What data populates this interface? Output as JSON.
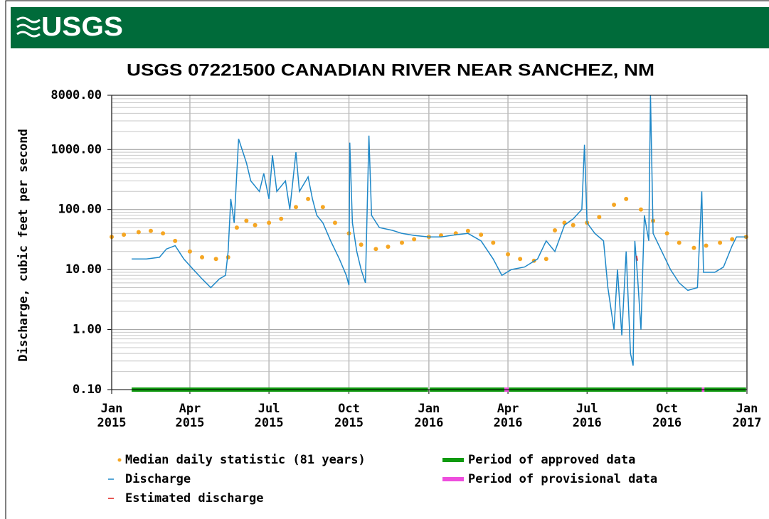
{
  "header": {
    "logo": "USGS"
  },
  "chart_data": {
    "type": "line",
    "title": "USGS 07221500 CANADIAN RIVER NEAR SANCHEZ, NM",
    "y_label": "Discharge, cubic feet per second",
    "log_y": true,
    "grid": true,
    "xlim": [
      "2015-01-01",
      "2017-01-01"
    ],
    "xticks": [
      {
        "value": "2015-01-01",
        "label": "Jan\n2015"
      },
      {
        "value": "2015-04-01",
        "label": "Apr\n2015"
      },
      {
        "value": "2015-07-01",
        "label": "Jul\n2015"
      },
      {
        "value": "2015-10-01",
        "label": "Oct\n2015"
      },
      {
        "value": "2016-01-01",
        "label": "Jan\n2016"
      },
      {
        "value": "2016-04-01",
        "label": "Apr\n2016"
      },
      {
        "value": "2016-07-01",
        "label": "Jul\n2016"
      },
      {
        "value": "2016-10-01",
        "label": "Oct\n2016"
      },
      {
        "value": "2017-01-01",
        "label": "Jan\n2017"
      }
    ],
    "ylim": [
      0.1,
      8000
    ],
    "yticks": [
      {
        "value": 0.1,
        "label": "0.10"
      },
      {
        "value": 1,
        "label": "1.00"
      },
      {
        "value": 10,
        "label": "10.00"
      },
      {
        "value": 100,
        "label": "100.00"
      },
      {
        "value": 1000,
        "label": "1000.00"
      },
      {
        "value": 8000,
        "label": "8000.00"
      }
    ],
    "series": [
      {
        "name": "Median daily statistic (81 years)",
        "color": "#f5a623",
        "marker": "dot",
        "x": [
          "2015-01-01",
          "2015-01-15",
          "2015-02-01",
          "2015-02-15",
          "2015-03-01",
          "2015-03-15",
          "2015-04-01",
          "2015-04-15",
          "2015-05-01",
          "2015-05-15",
          "2015-05-25",
          "2015-06-05",
          "2015-06-15",
          "2015-07-01",
          "2015-07-15",
          "2015-08-01",
          "2015-08-15",
          "2015-09-01",
          "2015-09-15",
          "2015-10-01",
          "2015-10-15",
          "2015-11-01",
          "2015-11-15",
          "2015-12-01",
          "2015-12-15",
          "2016-01-01",
          "2016-01-15",
          "2016-02-01",
          "2016-02-15",
          "2016-03-01",
          "2016-03-15",
          "2016-04-01",
          "2016-04-15",
          "2016-05-01",
          "2016-05-15",
          "2016-05-25",
          "2016-06-05",
          "2016-06-15",
          "2016-07-01",
          "2016-07-15",
          "2016-08-01",
          "2016-08-15",
          "2016-09-01",
          "2016-09-15",
          "2016-10-01",
          "2016-10-15",
          "2016-11-01",
          "2016-11-15",
          "2016-12-01",
          "2016-12-15",
          "2016-12-31"
        ],
        "values": [
          35,
          38,
          42,
          44,
          40,
          30,
          20,
          16,
          15,
          16,
          50,
          65,
          55,
          60,
          70,
          110,
          150,
          110,
          60,
          40,
          26,
          22,
          24,
          28,
          32,
          35,
          37,
          40,
          44,
          38,
          28,
          18,
          15,
          14,
          15,
          45,
          60,
          55,
          60,
          75,
          120,
          150,
          100,
          65,
          40,
          28,
          23,
          25,
          28,
          32,
          35
        ]
      },
      {
        "name": "Discharge",
        "color": "#1f88c8",
        "marker": "line",
        "x": [
          "2015-01-24",
          "2015-02-10",
          "2015-02-25",
          "2015-03-05",
          "2015-03-15",
          "2015-03-25",
          "2015-04-05",
          "2015-04-15",
          "2015-04-25",
          "2015-05-05",
          "2015-05-12",
          "2015-05-15",
          "2015-05-18",
          "2015-05-22",
          "2015-05-27",
          "2015-06-05",
          "2015-06-10",
          "2015-06-20",
          "2015-06-25",
          "2015-07-01",
          "2015-07-05",
          "2015-07-10",
          "2015-07-20",
          "2015-07-25",
          "2015-08-01",
          "2015-08-05",
          "2015-08-15",
          "2015-08-20",
          "2015-08-25",
          "2015-09-01",
          "2015-09-10",
          "2015-09-20",
          "2015-09-28",
          "2015-10-01",
          "2015-10-02",
          "2015-10-05",
          "2015-10-10",
          "2015-10-15",
          "2015-10-20",
          "2015-10-24",
          "2015-10-27",
          "2015-11-05",
          "2015-11-20",
          "2015-12-01",
          "2015-12-15",
          "2016-01-01",
          "2016-01-15",
          "2016-02-01",
          "2016-02-15",
          "2016-03-01",
          "2016-03-15",
          "2016-03-25",
          "2016-04-05",
          "2016-04-20",
          "2016-05-05",
          "2016-05-15",
          "2016-05-25",
          "2016-06-05",
          "2016-06-15",
          "2016-06-25",
          "2016-06-28",
          "2016-07-01",
          "2016-07-10",
          "2016-07-20",
          "2016-07-25",
          "2016-08-01",
          "2016-08-05",
          "2016-08-10",
          "2016-08-15",
          "2016-08-20",
          "2016-08-23",
          "2016-08-25",
          "2016-08-28",
          "2016-09-01",
          "2016-09-05",
          "2016-09-10",
          "2016-09-12",
          "2016-09-15",
          "2016-09-25",
          "2016-10-05",
          "2016-10-15",
          "2016-10-25",
          "2016-11-05",
          "2016-11-10",
          "2016-11-12",
          "2016-11-25",
          "2016-12-05",
          "2016-12-15",
          "2016-12-20",
          "2016-12-31"
        ],
        "values": [
          15,
          15,
          16,
          22,
          25,
          15,
          10,
          7,
          5,
          7,
          8,
          20,
          150,
          60,
          1500,
          600,
          300,
          200,
          400,
          150,
          800,
          200,
          300,
          100,
          900,
          200,
          350,
          150,
          80,
          60,
          30,
          15,
          8,
          5.5,
          1300,
          60,
          20,
          10,
          6,
          1700,
          80,
          50,
          45,
          40,
          37,
          35,
          35,
          38,
          40,
          30,
          15,
          8,
          10,
          11,
          15,
          30,
          20,
          55,
          70,
          100,
          1200,
          60,
          40,
          30,
          5,
          1,
          10,
          0.8,
          20,
          0.4,
          0.25,
          30,
          8,
          1,
          80,
          30,
          8000,
          40,
          20,
          10,
          6,
          4.5,
          5,
          200,
          9,
          9,
          11,
          25,
          35,
          35
        ]
      },
      {
        "name": "Estimated discharge",
        "color": "#e0201b",
        "marker": "line",
        "x": [
          "2016-08-27",
          "2016-08-28"
        ],
        "values": [
          17,
          14
        ]
      }
    ],
    "periods": [
      {
        "name": "Period of approved data",
        "color": "#0f9a0f",
        "spans": [
          [
            "2015-01-24",
            "2015-12-31"
          ],
          [
            "2016-01-02",
            "2016-03-28"
          ],
          [
            "2016-04-02",
            "2016-11-10"
          ],
          [
            "2016-11-13",
            "2016-12-31"
          ]
        ]
      },
      {
        "name": "Period of provisional data",
        "color": "#ee4ddd",
        "spans": [
          [
            "2016-03-28",
            "2016-04-02"
          ],
          [
            "2016-11-10",
            "2016-11-13"
          ]
        ]
      }
    ]
  }
}
